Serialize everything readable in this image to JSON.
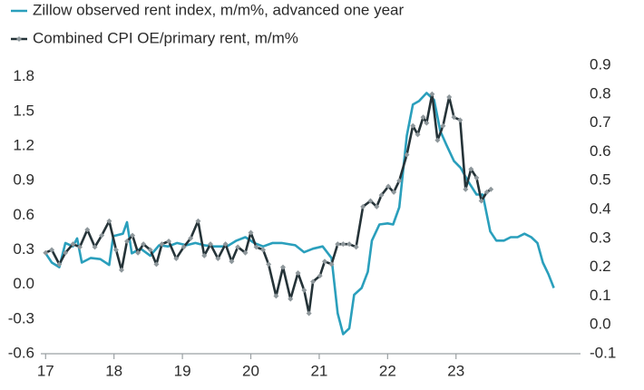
{
  "chart_data": {
    "type": "line",
    "legend": "top-left",
    "xlim": [
      16.93,
      24.82
    ],
    "xticks": [
      17,
      18,
      19,
      20,
      21,
      22,
      23
    ],
    "ylim": [
      -0.6,
      1.9
    ],
    "yticks": [
      -0.6,
      -0.3,
      {
        "value": 0,
        "label": "0.0"
      },
      0.3,
      0.6,
      0.9,
      1.2,
      1.5,
      1.8
    ],
    "y2lim": [
      -0.1,
      0.9
    ],
    "y2ticks": [
      -0.1,
      {
        "value": 0,
        "label": "0.0"
      },
      0.1,
      0.2,
      0.3,
      0.4,
      0.5,
      0.6,
      0.7,
      0.8,
      0.9
    ],
    "series": [
      {
        "name": "Zillow observed rent index, m/m%, advanced one year",
        "color": "#2a9fbc",
        "axis": "y",
        "markers": false,
        "x": [
          17.0,
          17.09,
          17.2,
          17.29,
          17.4,
          17.46,
          17.53,
          17.66,
          17.8,
          17.93,
          17.99,
          18.13,
          18.19,
          18.26,
          18.39,
          18.53,
          18.66,
          18.79,
          18.92,
          19.06,
          19.19,
          19.32,
          19.45,
          19.65,
          19.79,
          19.92,
          20.05,
          20.18,
          20.32,
          20.45,
          20.65,
          20.78,
          20.91,
          21.05,
          21.18,
          21.27,
          21.35,
          21.44,
          21.51,
          21.62,
          21.71,
          21.77,
          21.88,
          22.0,
          22.08,
          22.17,
          22.28,
          22.37,
          22.46,
          22.57,
          22.68,
          22.77,
          22.86,
          22.97,
          23.07,
          23.17,
          23.3,
          23.39,
          23.5,
          23.59,
          23.7,
          23.8,
          23.9,
          24.0,
          24.1,
          24.19,
          24.27,
          24.35,
          24.43
        ],
        "values": [
          0.27,
          0.19,
          0.15,
          0.36,
          0.33,
          0.4,
          0.19,
          0.23,
          0.22,
          0.17,
          0.42,
          0.44,
          0.54,
          0.27,
          0.31,
          0.25,
          0.34,
          0.33,
          0.36,
          0.34,
          0.36,
          0.34,
          0.33,
          0.33,
          0.38,
          0.41,
          0.36,
          0.33,
          0.36,
          0.36,
          0.34,
          0.28,
          0.31,
          0.33,
          0.23,
          -0.25,
          -0.43,
          -0.38,
          -0.09,
          -0.03,
          0.11,
          0.38,
          0.52,
          0.53,
          0.52,
          0.67,
          1.29,
          1.56,
          1.59,
          1.66,
          1.6,
          1.33,
          1.21,
          1.07,
          1.01,
          0.9,
          0.78,
          0.78,
          0.46,
          0.38,
          0.38,
          0.41,
          0.41,
          0.44,
          0.41,
          0.36,
          0.19,
          0.09,
          -0.03
        ]
      },
      {
        "name": "Combined CPI OE/primary rent, m/m%",
        "color": "#253338",
        "axis": "y2",
        "markers": true,
        "x": [
          17.0,
          17.09,
          17.2,
          17.29,
          17.4,
          17.5,
          17.61,
          17.72,
          17.82,
          17.93,
          18.03,
          18.11,
          18.19,
          18.27,
          18.35,
          18.43,
          18.53,
          18.62,
          18.7,
          18.8,
          18.91,
          19.02,
          19.12,
          19.23,
          19.32,
          19.41,
          19.52,
          19.63,
          19.72,
          19.81,
          19.92,
          20.0,
          20.08,
          20.18,
          20.26,
          20.37,
          20.47,
          20.58,
          20.69,
          20.78,
          20.85,
          20.91,
          21.01,
          21.08,
          21.18,
          21.27,
          21.35,
          21.44,
          21.54,
          21.64,
          21.75,
          21.84,
          21.91,
          22.01,
          22.09,
          22.17,
          22.28,
          22.37,
          22.44,
          22.52,
          22.57,
          22.65,
          22.73,
          22.81,
          22.9,
          22.97,
          23.06,
          23.14,
          23.22,
          23.3,
          23.37,
          23.45,
          23.51
        ],
        "values": [
          0.25,
          0.26,
          0.21,
          0.25,
          0.28,
          0.27,
          0.33,
          0.27,
          0.31,
          0.36,
          0.26,
          0.19,
          0.29,
          0.31,
          0.25,
          0.28,
          0.26,
          0.21,
          0.28,
          0.29,
          0.23,
          0.27,
          0.3,
          0.36,
          0.24,
          0.28,
          0.23,
          0.28,
          0.22,
          0.27,
          0.25,
          0.32,
          0.27,
          0.26,
          0.21,
          0.1,
          0.2,
          0.09,
          0.18,
          0.12,
          0.04,
          0.15,
          0.17,
          0.22,
          0.21,
          0.28,
          0.28,
          0.28,
          0.27,
          0.41,
          0.43,
          0.41,
          0.45,
          0.48,
          0.46,
          0.5,
          0.59,
          0.69,
          0.66,
          0.72,
          0.7,
          0.8,
          0.64,
          0.69,
          0.79,
          0.72,
          0.71,
          0.47,
          0.54,
          0.51,
          0.43,
          0.46,
          0.47
        ]
      }
    ]
  }
}
